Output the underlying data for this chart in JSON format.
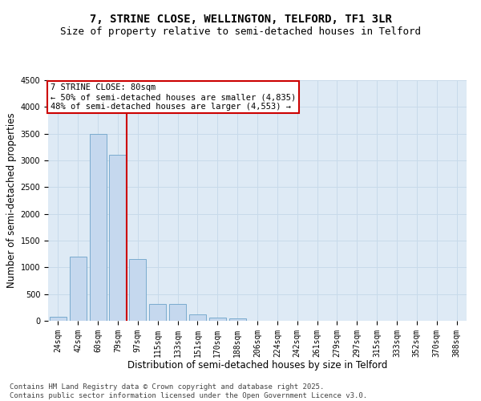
{
  "title_line1": "7, STRINE CLOSE, WELLINGTON, TELFORD, TF1 3LR",
  "title_line2": "Size of property relative to semi-detached houses in Telford",
  "xlabel": "Distribution of semi-detached houses by size in Telford",
  "ylabel": "Number of semi-detached properties",
  "categories": [
    "24sqm",
    "42sqm",
    "60sqm",
    "79sqm",
    "97sqm",
    "115sqm",
    "133sqm",
    "151sqm",
    "170sqm",
    "188sqm",
    "206sqm",
    "224sqm",
    "242sqm",
    "261sqm",
    "279sqm",
    "297sqm",
    "315sqm",
    "333sqm",
    "352sqm",
    "370sqm",
    "388sqm"
  ],
  "values": [
    75,
    1200,
    3500,
    3100,
    1150,
    320,
    320,
    120,
    55,
    40,
    0,
    0,
    0,
    0,
    0,
    0,
    0,
    0,
    0,
    0,
    0
  ],
  "bar_color": "#c5d8ee",
  "bar_edge_color": "#7aabce",
  "vline_color": "#cc0000",
  "vline_index": 3.43,
  "annotation_text": "7 STRINE CLOSE: 80sqm\n← 50% of semi-detached houses are smaller (4,835)\n48% of semi-detached houses are larger (4,553) →",
  "annotation_box_color": "#cc0000",
  "ylim": [
    0,
    4500
  ],
  "yticks": [
    0,
    500,
    1000,
    1500,
    2000,
    2500,
    3000,
    3500,
    4000,
    4500
  ],
  "footnote": "Contains HM Land Registry data © Crown copyright and database right 2025.\nContains public sector information licensed under the Open Government Licence v3.0.",
  "bg_color": "#ffffff",
  "grid_color": "#c8daea",
  "title_fontsize": 10,
  "subtitle_fontsize": 9,
  "axis_label_fontsize": 8.5,
  "tick_fontsize": 7,
  "footnote_fontsize": 6.5
}
